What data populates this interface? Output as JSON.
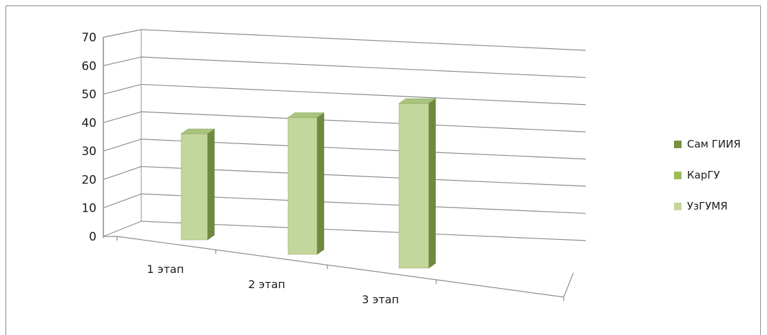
{
  "chart_data": {
    "type": "bar",
    "categories": [
      "1 этап",
      "2 этап",
      "3 этап"
    ],
    "series": [
      {
        "name": "Сам ГИИЯ",
        "values": [
          0,
          0,
          0
        ],
        "color": "#76923c"
      },
      {
        "name": "КарГУ",
        "values": [
          0,
          0,
          0
        ],
        "color": "#9bbb59"
      },
      {
        "name": "УзГУМЯ",
        "values": [
          38,
          49,
          59
        ],
        "color": "#c3d69b"
      }
    ],
    "y_ticks": [
      "0",
      "10",
      "20",
      "30",
      "40",
      "50",
      "60",
      "70"
    ],
    "ylim": [
      0,
      70
    ],
    "grid": true,
    "legend_position": "right",
    "projection": "3d-perspective"
  }
}
